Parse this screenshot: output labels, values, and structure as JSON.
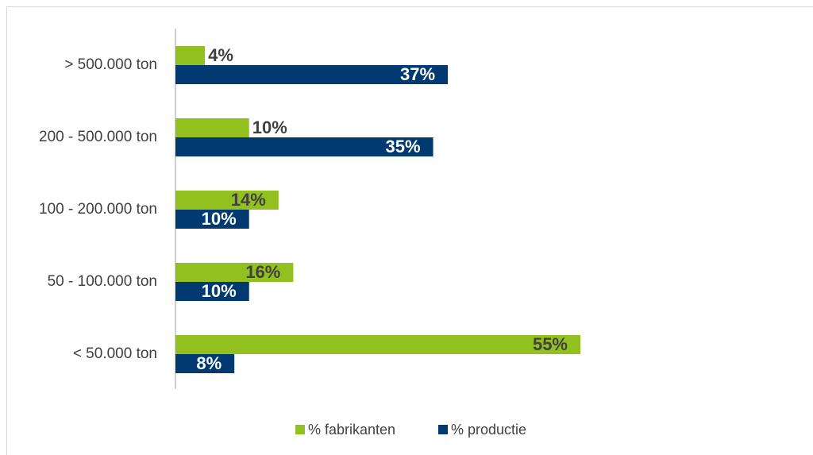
{
  "chart_data": {
    "type": "hbar",
    "categories": [
      "> 500.000 ton",
      "200 - 500.000 ton",
      "100 - 200.000 ton",
      "50 - 100.000 ton",
      "< 50.000 ton"
    ],
    "series": [
      {
        "name": "% fabrikanten",
        "color": "#92c01f",
        "values": [
          4,
          10,
          14,
          16,
          55
        ],
        "value_labels": [
          "4%",
          "10%",
          "14%",
          "16%",
          "55%"
        ]
      },
      {
        "name": "% productie",
        "color": "#003a70",
        "values": [
          37,
          35,
          10,
          10,
          8
        ],
        "value_labels": [
          "37%",
          "35%",
          "10%",
          "10%",
          "8%"
        ]
      }
    ],
    "legend": "bottom"
  }
}
